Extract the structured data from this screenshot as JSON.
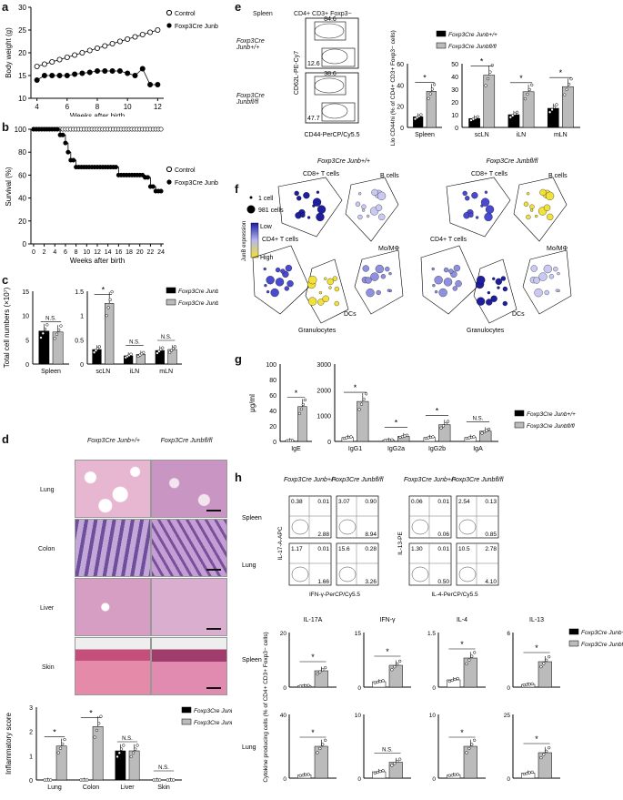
{
  "panels": {
    "a": {
      "label": "a",
      "ylabel": "Body weight (g)",
      "xlabel": "Weeks after birth",
      "yticks": [
        "10",
        "15",
        "20",
        "25",
        "30"
      ],
      "xticks": [
        "4",
        "6",
        "8",
        "10",
        "12"
      ],
      "legend": [
        "Control",
        "Foxp3Cre Junbfl/fl"
      ]
    },
    "b": {
      "label": "b",
      "ylabel": "Survival (%)",
      "xlabel": "Weeks after birth",
      "yticks": [
        "0",
        "20",
        "40",
        "60",
        "80",
        "100"
      ],
      "xticks": [
        "0",
        "2",
        "4",
        "6",
        "8",
        "10",
        "12",
        "14",
        "16",
        "18",
        "20",
        "22",
        "24"
      ],
      "legend": [
        "Control",
        "Foxp3Cre Junbfl/fl"
      ]
    },
    "c": {
      "label": "c",
      "ylabel": "Total cell numbers (×10⁷)",
      "groups": [
        "Spleen",
        "scLN",
        "iLN",
        "mLN"
      ],
      "sig": [
        "N.S.",
        "*",
        "N.S.",
        "N.S."
      ],
      "legend": [
        "Foxp3Cre Junb+/+",
        "Foxp3Cre Junbfl/fl"
      ]
    },
    "d": {
      "label": "d",
      "col1": "Foxp3Cre Junb+/+",
      "col2": "Foxp3Cre Junbfl/fl",
      "rows": [
        "Lung",
        "Colon",
        "Liver",
        "Skin"
      ],
      "score_ylabel": "Inflammatory score",
      "score_groups": [
        "Lung",
        "Colon",
        "Liver",
        "Skin"
      ],
      "score_sig": [
        "*",
        "*",
        "N.S.",
        "N.S."
      ],
      "score_legend": [
        "Foxp3Cre Junbfl/+",
        "Foxp3Cre Junbfl/fl"
      ]
    },
    "e": {
      "label": "e",
      "tissue": "Spleen",
      "gate": "CD4+ CD3+ Foxp3−",
      "row1": "Foxp3Cre Junb+/+",
      "row2": "Foxp3Cre Junbfl/fl",
      "yaxis": "CD62L-PE-Cy7",
      "xaxis": "CD44-PerCP/Cy5.5",
      "q1_top": "84.6",
      "q1_bot": "12.6",
      "q2_top": "38.6",
      "q2_bot": "47.7",
      "bar_ylabel": "CD62Llo CD44hi (% of CD4+ CD3+ Foxp3− cells)",
      "bar_groups": [
        "Spleen",
        "scLN",
        "iLN",
        "mLN"
      ],
      "legend": [
        "Foxp3Cre Junb+/+",
        "Foxp3Cre Junbfl/fl"
      ]
    },
    "f": {
      "label": "f",
      "size_legend": [
        "1 cell",
        "981 cells"
      ],
      "color_label": "JunB expression",
      "color_low": "Low",
      "color_high": "High",
      "titles": [
        "Foxp3Cre Junb+/+",
        "Foxp3Cre Junbfl/fl"
      ],
      "clusters": [
        "CD8+ T cells",
        "B cells",
        "CD4+ T cells",
        "Mo/MΦ",
        "DCs",
        "Granulocytes"
      ]
    },
    "g": {
      "label": "g",
      "ylabel": "μg/ml",
      "groups": [
        "IgE",
        "IgG1",
        "IgG2a",
        "IgG2b",
        "IgA"
      ],
      "sig": [
        "*",
        "*",
        "*",
        "*",
        "N.S."
      ],
      "legend": [
        "Foxp3Cre Junb+/+",
        "Foxp3Cre Junbfl/fl"
      ]
    },
    "h": {
      "label": "h",
      "cols": [
        "Foxp3Cre Junb+/+",
        "Foxp3Cre Junbfl/fl",
        "Foxp3Cre Junb+/+",
        "Foxp3Cre Junbfl/fl"
      ],
      "rows": [
        "Spleen",
        "Lung"
      ],
      "yaxis1": "IL-17-A-APC",
      "xaxis1": "IFN-γ-PerCP/Cy5.5",
      "yaxis2": "IL-13-PE",
      "xaxis2": "IL-4-PerCP/Cy5.5",
      "quads": [
        [
          "0.38",
          "0.01",
          "2.88"
        ],
        [
          "3.07",
          "0.90",
          "8.94"
        ],
        [
          "0.06",
          "0.01",
          "0.06"
        ],
        [
          "2.54",
          "0.13",
          "0.85"
        ],
        [
          "1.17",
          "0.01",
          "1.66"
        ],
        [
          "15.6",
          "0.28",
          "3.26"
        ],
        [
          "1.30",
          "0.01",
          "0.50"
        ],
        [
          "10.5",
          "2.78",
          "4.10"
        ]
      ],
      "cytokines": [
        "IL-17A",
        "IFN-γ",
        "IL-4",
        "IL-13"
      ],
      "bar_ylabel": "Cytokine producing cells (% of CD4+ CD3+ Foxp3− cells)",
      "sig_spleen": [
        "*",
        "*",
        "*",
        "*"
      ],
      "sig_lung": [
        "*",
        "N.S.",
        "*",
        "*"
      ],
      "legend": [
        "Foxp3Cre Junb+/+",
        "Foxp3Cre Junbfl/fl"
      ]
    }
  },
  "chart_data": [
    {
      "type": "line",
      "title": "",
      "xlabel": "Weeks after birth",
      "ylabel": "Body weight (g)",
      "ylim": [
        10,
        30
      ],
      "x": [
        4,
        4.5,
        5,
        5.5,
        6,
        6.5,
        7,
        7.5,
        8,
        8.5,
        9,
        9.5,
        10,
        10.5,
        11,
        11.5,
        12
      ],
      "series": [
        {
          "name": "Control",
          "values": [
            17,
            17.5,
            18,
            18.5,
            19,
            19.5,
            20,
            20.5,
            21,
            21.5,
            22,
            22.5,
            23,
            23.5,
            24,
            24.5,
            25
          ]
        },
        {
          "name": "Foxp3Cre Junbfl/fl",
          "values": [
            14,
            15,
            15,
            15,
            15,
            15.3,
            15.5,
            15.7,
            16,
            16,
            16,
            16,
            15.5,
            15,
            16.5,
            13,
            13
          ]
        }
      ]
    },
    {
      "type": "line",
      "xlabel": "Weeks after birth",
      "ylabel": "Survival (%)",
      "ylim": [
        0,
        100
      ],
      "x": [
        0,
        4,
        5,
        6,
        6.5,
        7,
        8,
        10,
        12,
        14,
        16,
        17,
        19,
        21,
        22,
        22.5,
        23,
        24
      ],
      "series": [
        {
          "name": "Control",
          "values": [
            100,
            100,
            100,
            100,
            100,
            100,
            100,
            100,
            100,
            100,
            100,
            100,
            100,
            100,
            100,
            100,
            100,
            100
          ]
        },
        {
          "name": "Foxp3Cre Junbfl/fl",
          "values": [
            100,
            100,
            95,
            88,
            80,
            73,
            67,
            67,
            67,
            67,
            60,
            60,
            60,
            58,
            50,
            50,
            46,
            46
          ]
        }
      ]
    },
    {
      "type": "bar",
      "ylabel": "Total cell numbers (×10⁷)",
      "categories": [
        "Spleen",
        "scLN",
        "iLN",
        "mLN"
      ],
      "series": [
        {
          "name": "Foxp3Cre Junb+/+",
          "values": [
            6.8,
            0.3,
            0.17,
            0.28
          ]
        },
        {
          "name": "Foxp3Cre Junbfl/fl",
          "values": [
            6.6,
            1.25,
            0.2,
            0.3
          ]
        }
      ]
    },
    {
      "type": "bar",
      "ylabel": "Inflammatory score",
      "ylim": [
        0,
        3
      ],
      "categories": [
        "Lung",
        "Colon",
        "Liver",
        "Skin"
      ],
      "series": [
        {
          "name": "Foxp3Cre Junbfl/+",
          "values": [
            0,
            0,
            1.2,
            0
          ]
        },
        {
          "name": "Foxp3Cre Junbfl/fl",
          "values": [
            1.4,
            2.2,
            1.2,
            0
          ]
        }
      ]
    },
    {
      "type": "bar",
      "ylabel": "CD62Llo CD44hi (% of CD4+ CD3+ Foxp3− cells)",
      "categories": [
        "Spleen",
        "scLN",
        "iLN",
        "mLN"
      ],
      "series": [
        {
          "name": "Foxp3Cre Junb+/+",
          "values": [
            10,
            7,
            10,
            15
          ]
        },
        {
          "name": "Foxp3Cre Junbfl/fl",
          "values": [
            34,
            41,
            28,
            32
          ]
        }
      ]
    },
    {
      "type": "bar",
      "ylabel": "μg/ml",
      "categories": [
        "IgE",
        "IgG1",
        "IgG2a",
        "IgG2b",
        "IgA"
      ],
      "series": [
        {
          "name": "Foxp3Cre Junb+/+",
          "values": [
            1,
            150,
            50,
            150,
            150
          ]
        },
        {
          "name": "Foxp3Cre Junbfl/fl",
          "values": [
            45,
            1550,
            200,
            650,
            400
          ]
        }
      ]
    }
  ]
}
